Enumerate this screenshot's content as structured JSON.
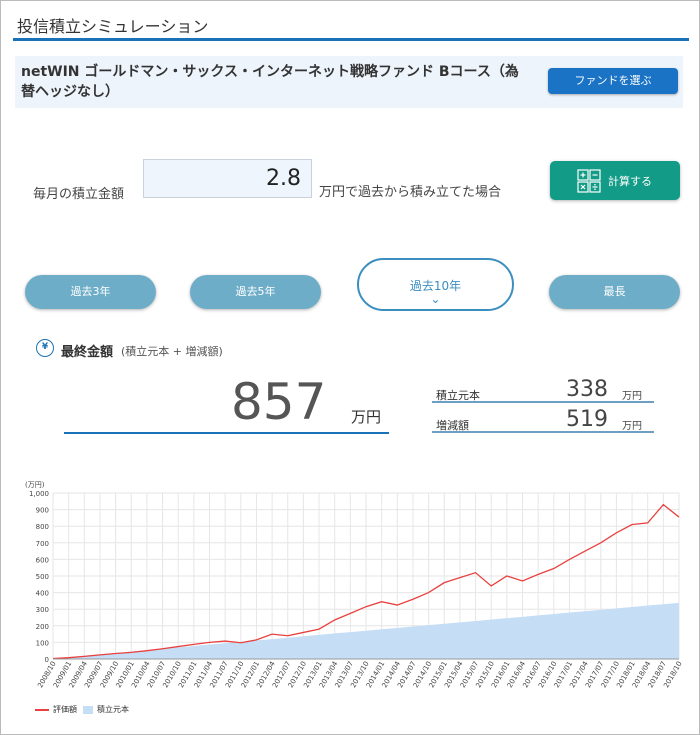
{
  "header": {
    "title": "投信積立シミュレーション"
  },
  "fund": {
    "name": "netWIN ゴールドマン・サックス・インターネット戦略ファンド Bコース（為替ヘッジなし）",
    "select_button": "ファンドを選ぶ"
  },
  "monthly": {
    "label": "毎月の積立金額",
    "value": "2.8",
    "suffix": "万円で過去から積み立てた場合"
  },
  "calc_button": {
    "label": "計算する",
    "icon": "calculator-icon"
  },
  "periods": [
    {
      "label": "過去3年",
      "active": false
    },
    {
      "label": "過去5年",
      "active": false
    },
    {
      "label": "過去10年",
      "active": true
    },
    {
      "label": "最長",
      "active": false
    }
  ],
  "final": {
    "icon_glyph": "¥",
    "title": "最終金額",
    "subtitle": "(積立元本 + 増減額)",
    "value": "857",
    "unit": "万円"
  },
  "summary": [
    {
      "label": "積立元本",
      "value": "338",
      "unit": "万円"
    },
    {
      "label": "増減額",
      "value": "519",
      "unit": "万円"
    }
  ],
  "colors": {
    "accent": "#1a73b8",
    "calc": "#129b86",
    "period": "#6eadc8",
    "line": "#e8413e",
    "area": "#c5ddf5"
  },
  "chart_data": {
    "type": "line",
    "y_unit_label": "(万円)",
    "ylim": [
      0,
      1000
    ],
    "yticks": [
      "0",
      "100",
      "200",
      "300",
      "400",
      "500",
      "600",
      "700",
      "800",
      "900",
      "1,000"
    ],
    "x_tick_labels": [
      "2008/10",
      "2009/01",
      "2009/04",
      "2009/07",
      "2009/10",
      "2010/01",
      "2010/04",
      "2010/07",
      "2010/10",
      "2011/01",
      "2011/04",
      "2011/07",
      "2011/10",
      "2012/01",
      "2012/04",
      "2012/07",
      "2012/10",
      "2013/01",
      "2013/04",
      "2013/07",
      "2013/10",
      "2014/01",
      "2014/04",
      "2014/07",
      "2014/10",
      "2015/01",
      "2015/04",
      "2015/07",
      "2015/10",
      "2016/01",
      "2016/04",
      "2016/07",
      "2016/10",
      "2017/01",
      "2017/04",
      "2017/07",
      "2017/10",
      "2018/01",
      "2018/04",
      "2018/07",
      "2018/10"
    ],
    "grid": true,
    "legend_position": "bottom-left",
    "series": [
      {
        "name": "評価額",
        "kind": "line",
        "values": [
          3,
          8,
          16,
          25,
          33,
          40,
          50,
          62,
          75,
          88,
          100,
          108,
          98,
          115,
          150,
          140,
          160,
          180,
          235,
          275,
          315,
          345,
          325,
          360,
          400,
          460,
          490,
          520,
          440,
          500,
          470,
          510,
          545,
          600,
          650,
          700,
          760,
          810,
          820,
          930,
          855
        ]
      },
      {
        "name": "積立元本",
        "kind": "area",
        "values": [
          3,
          11,
          20,
          28,
          36,
          45,
          53,
          61,
          70,
          78,
          87,
          95,
          103,
          112,
          120,
          128,
          137,
          145,
          154,
          162,
          170,
          179,
          187,
          196,
          204,
          212,
          221,
          229,
          238,
          246,
          254,
          263,
          271,
          280,
          288,
          296,
          305,
          313,
          322,
          330,
          338
        ]
      }
    ]
  }
}
